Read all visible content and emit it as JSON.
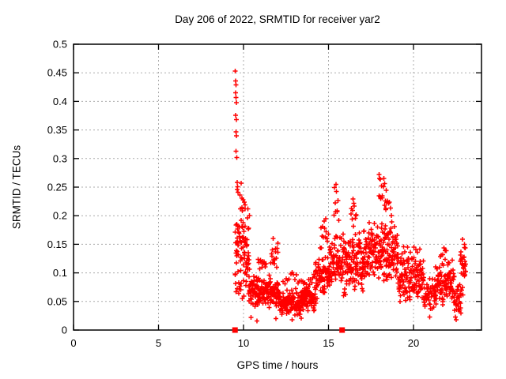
{
  "chart_data": {
    "type": "scatter",
    "title": "Day 206 of 2022, SRMTID for receiver yar2",
    "xlabel": "GPS time / hours",
    "ylabel": "SRMTID / TECUs",
    "series_name": "SRMTID",
    "legend": "none",
    "marker": "plus",
    "marker_color": "#ff0000",
    "grid": true,
    "grid_color": "#ababab",
    "border_color": "#000000",
    "background": "#ffffff",
    "xlim": [
      0,
      24
    ],
    "ylim": [
      0,
      0.5
    ],
    "xticks": {
      "values": [
        0,
        5,
        10,
        15,
        20
      ],
      "labels": [
        "0",
        "5",
        "10",
        "15",
        "20"
      ]
    },
    "yticks": {
      "values": [
        0,
        0.05,
        0.1,
        0.15,
        0.2,
        0.25,
        0.3,
        0.35,
        0.4,
        0.45,
        0.5
      ],
      "labels": [
        "0",
        "0.05",
        "0.1",
        "0.15",
        "0.2",
        "0.25",
        "0.3",
        "0.35",
        "0.4",
        "0.45",
        "0.5"
      ]
    },
    "data_start_hour": 9.4,
    "data_end_hour": 23.1,
    "x_axis_square_markers": [
      9.5,
      15.8
    ],
    "envelope": {
      "t": [
        9.5,
        10,
        10.5,
        11,
        11.5,
        12,
        12.5,
        13,
        13.5,
        14,
        14.5,
        15,
        15.5,
        16,
        16.5,
        17,
        17.5,
        18,
        18.5,
        19,
        19.5,
        20,
        20.5,
        21,
        21.5,
        22,
        22.5,
        23
      ],
      "typical": [
        0.25,
        0.14,
        0.07,
        0.065,
        0.06,
        0.06,
        0.05,
        0.045,
        0.05,
        0.06,
        0.09,
        0.11,
        0.12,
        0.11,
        0.12,
        0.12,
        0.13,
        0.15,
        0.13,
        0.1,
        0.09,
        0.09,
        0.07,
        0.06,
        0.08,
        0.08,
        0.05,
        0.11
      ],
      "max": [
        0.453,
        0.26,
        0.1,
        0.13,
        0.1,
        0.165,
        0.075,
        0.07,
        0.08,
        0.1,
        0.2,
        0.19,
        0.255,
        0.17,
        0.229,
        0.18,
        0.19,
        0.272,
        0.256,
        0.195,
        0.156,
        0.14,
        0.13,
        0.1,
        0.145,
        0.126,
        0.088,
        0.159
      ],
      "min": [
        0.09,
        0.06,
        0.04,
        0.04,
        0.035,
        0.03,
        0.022,
        0.022,
        0.025,
        0.03,
        0.05,
        0.065,
        0.068,
        0.058,
        0.06,
        0.06,
        0.07,
        0.08,
        0.068,
        0.05,
        0.048,
        0.05,
        0.028,
        0.023,
        0.038,
        0.04,
        0.018,
        0.058
      ]
    },
    "outlier_points": [
      [
        9.52,
        0.453
      ],
      [
        9.54,
        0.436
      ],
      [
        9.56,
        0.429
      ],
      [
        9.53,
        0.415
      ],
      [
        9.55,
        0.407
      ],
      [
        9.57,
        0.398
      ],
      [
        9.54,
        0.376
      ],
      [
        9.57,
        0.368
      ],
      [
        9.55,
        0.347
      ],
      [
        9.58,
        0.34
      ],
      [
        9.56,
        0.313
      ],
      [
        9.6,
        0.302
      ],
      [
        9.62,
        0.258
      ],
      [
        9.65,
        0.251
      ],
      [
        9.63,
        0.246
      ],
      [
        9.68,
        0.241
      ],
      [
        9.78,
        0.236
      ],
      [
        9.86,
        0.257
      ],
      [
        9.9,
        0.231
      ],
      [
        9.97,
        0.228
      ],
      [
        10.04,
        0.224
      ],
      [
        10.1,
        0.219
      ],
      [
        10.45,
        0.022
      ],
      [
        10.78,
        0.016
      ],
      [
        11.9,
        0.02
      ],
      [
        12.85,
        0.018
      ],
      [
        13.4,
        0.021
      ],
      [
        15.45,
        0.255
      ],
      [
        16.45,
        0.229
      ],
      [
        17.98,
        0.272
      ],
      [
        18.05,
        0.264
      ],
      [
        18.3,
        0.256
      ],
      [
        20.95,
        0.023
      ],
      [
        22.5,
        0.018
      ],
      [
        22.88,
        0.159
      ],
      [
        23.0,
        0.15
      ]
    ],
    "scatter_segments": [
      [
        9.5,
        10.35,
        95,
        0.05,
        0.225
      ],
      [
        10.3,
        11.6,
        115,
        0.038,
        0.098
      ],
      [
        10.85,
        11.35,
        12,
        0.098,
        0.128
      ],
      [
        11.55,
        12.1,
        45,
        0.035,
        0.092
      ],
      [
        11.6,
        12.05,
        16,
        0.105,
        0.165
      ],
      [
        12.05,
        13.6,
        130,
        0.022,
        0.075
      ],
      [
        13.55,
        14.25,
        60,
        0.03,
        0.085
      ],
      [
        12.3,
        14.2,
        22,
        0.075,
        0.102
      ],
      [
        14.2,
        15.1,
        80,
        0.052,
        0.138
      ],
      [
        14.5,
        15.0,
        14,
        0.138,
        0.198
      ],
      [
        15.05,
        15.8,
        60,
        0.068,
        0.178
      ],
      [
        15.3,
        15.62,
        9,
        0.178,
        0.252
      ],
      [
        15.8,
        17.05,
        115,
        0.058,
        0.178
      ],
      [
        16.3,
        16.65,
        10,
        0.178,
        0.228
      ],
      [
        17.0,
        18.25,
        115,
        0.072,
        0.195
      ],
      [
        17.95,
        18.42,
        13,
        0.195,
        0.268
      ],
      [
        18.25,
        19.1,
        85,
        0.068,
        0.198
      ],
      [
        18.35,
        18.7,
        7,
        0.198,
        0.248
      ],
      [
        19.1,
        20.6,
        125,
        0.048,
        0.135
      ],
      [
        19.3,
        20.5,
        8,
        0.135,
        0.156
      ],
      [
        20.6,
        21.3,
        48,
        0.028,
        0.1
      ],
      [
        21.25,
        22.4,
        100,
        0.038,
        0.126
      ],
      [
        21.55,
        21.95,
        6,
        0.126,
        0.145
      ],
      [
        22.4,
        22.8,
        30,
        0.02,
        0.088
      ],
      [
        22.75,
        23.08,
        32,
        0.058,
        0.158
      ]
    ],
    "random_seed": 2022206
  }
}
